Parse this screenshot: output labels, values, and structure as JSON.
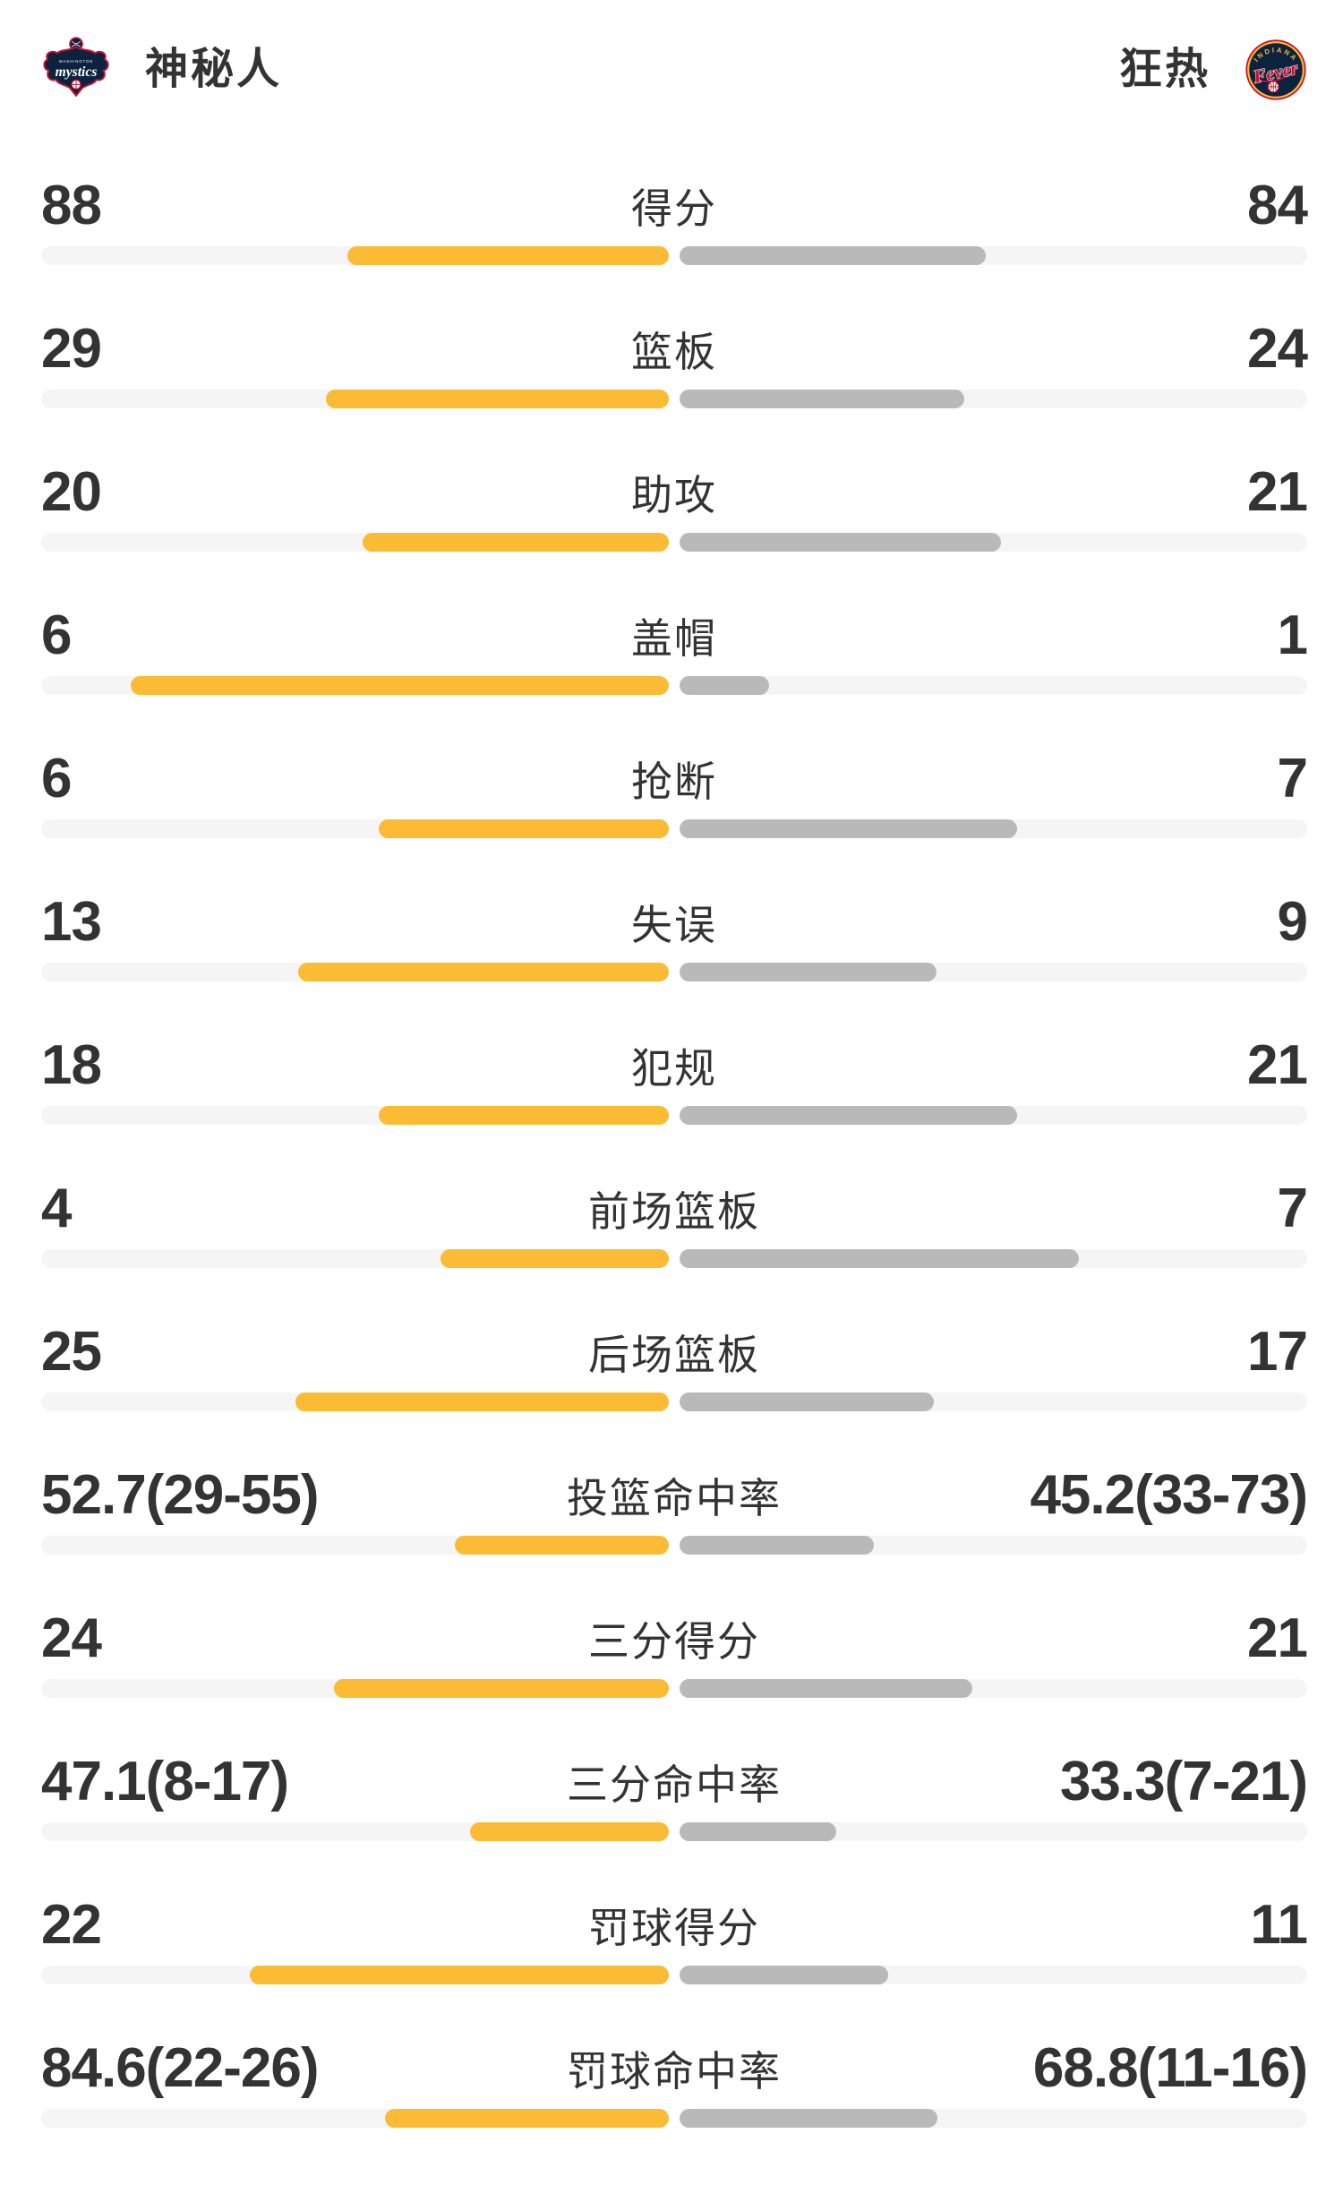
{
  "header": {
    "home_team": {
      "name": "神秘人",
      "logo_icon": "mystics-crest-logo",
      "logo_script_text": "mystics",
      "logo_top_text": "WASHINGTON"
    },
    "away_team": {
      "name": "狂热",
      "logo_icon": "fever-circle-logo",
      "logo_script_text": "Fever",
      "logo_top_text": "INDIANA"
    }
  },
  "colors": {
    "home_bar": "#FBBB34",
    "away_bar": "#B9B9B9",
    "bar_track": "#F5F5F6",
    "text": "#333333",
    "logo_navy": "#0C2340",
    "logo_red": "#C8102E",
    "logo_gold": "#FDBB30"
  },
  "stats": [
    {
      "label": "得分",
      "home_value": "88",
      "away_value": "84",
      "home_fill_pct": 51.2,
      "away_fill_pct": 48.8
    },
    {
      "label": "篮板",
      "home_value": "29",
      "away_value": "24",
      "home_fill_pct": 54.7,
      "away_fill_pct": 45.3
    },
    {
      "label": "助攻",
      "home_value": "20",
      "away_value": "21",
      "home_fill_pct": 48.8,
      "away_fill_pct": 51.2
    },
    {
      "label": "盖帽",
      "home_value": "6",
      "away_value": "1",
      "home_fill_pct": 85.7,
      "away_fill_pct": 14.3
    },
    {
      "label": "抢断",
      "home_value": "6",
      "away_value": "7",
      "home_fill_pct": 46.2,
      "away_fill_pct": 53.8
    },
    {
      "label": "失误",
      "home_value": "13",
      "away_value": "9",
      "home_fill_pct": 59.1,
      "away_fill_pct": 40.9
    },
    {
      "label": "犯规",
      "home_value": "18",
      "away_value": "21",
      "home_fill_pct": 46.2,
      "away_fill_pct": 53.8
    },
    {
      "label": "前场篮板",
      "home_value": "4",
      "away_value": "7",
      "home_fill_pct": 36.4,
      "away_fill_pct": 63.6
    },
    {
      "label": "后场篮板",
      "home_value": "25",
      "away_value": "17",
      "home_fill_pct": 59.5,
      "away_fill_pct": 40.5
    },
    {
      "label": "投篮命中率",
      "home_value": "52.7(29-55)",
      "away_value": "45.2(33-73)",
      "home_fill_pct": 34.1,
      "away_fill_pct": 31.0
    },
    {
      "label": "三分得分",
      "home_value": "24",
      "away_value": "21",
      "home_fill_pct": 53.3,
      "away_fill_pct": 46.7
    },
    {
      "label": "三分命中率",
      "home_value": "47.1(8-17)",
      "away_value": "33.3(7-21)",
      "home_fill_pct": 31.7,
      "away_fill_pct": 25.0
    },
    {
      "label": "罚球得分",
      "home_value": "22",
      "away_value": "11",
      "home_fill_pct": 66.7,
      "away_fill_pct": 33.3
    },
    {
      "label": "罚球命中率",
      "home_value": "84.6(22-26)",
      "away_value": "68.8(11-16)",
      "home_fill_pct": 45.2,
      "away_fill_pct": 41.1
    }
  ],
  "chart_data": {
    "type": "bar",
    "orientation": "horizontal-paired-from-center",
    "legend_position": "top",
    "grid": false,
    "categories": [
      "得分",
      "篮板",
      "助攻",
      "盖帽",
      "抢断",
      "失误",
      "犯规",
      "前场篮板",
      "后场篮板",
      "投篮命中率",
      "三分得分",
      "三分命中率",
      "罚球得分",
      "罚球命中率"
    ],
    "series": [
      {
        "name": "神秘人",
        "color": "#FBBB34",
        "values": [
          88,
          29,
          20,
          6,
          6,
          13,
          18,
          4,
          25,
          52.7,
          24,
          47.1,
          22,
          84.6
        ],
        "display_labels": [
          "88",
          "29",
          "20",
          "6",
          "6",
          "13",
          "18",
          "4",
          "25",
          "52.7(29-55)",
          "24",
          "47.1(8-17)",
          "22",
          "84.6(22-26)"
        ]
      },
      {
        "name": "狂热",
        "color": "#B9B9B9",
        "values": [
          84,
          24,
          21,
          1,
          7,
          9,
          21,
          7,
          17,
          45.2,
          21,
          33.3,
          11,
          68.8
        ],
        "display_labels": [
          "84",
          "24",
          "21",
          "1",
          "7",
          "9",
          "21",
          "7",
          "17",
          "45.2(33-73)",
          "21",
          "33.3(7-21)",
          "11",
          "68.8(11-16)"
        ]
      }
    ]
  }
}
